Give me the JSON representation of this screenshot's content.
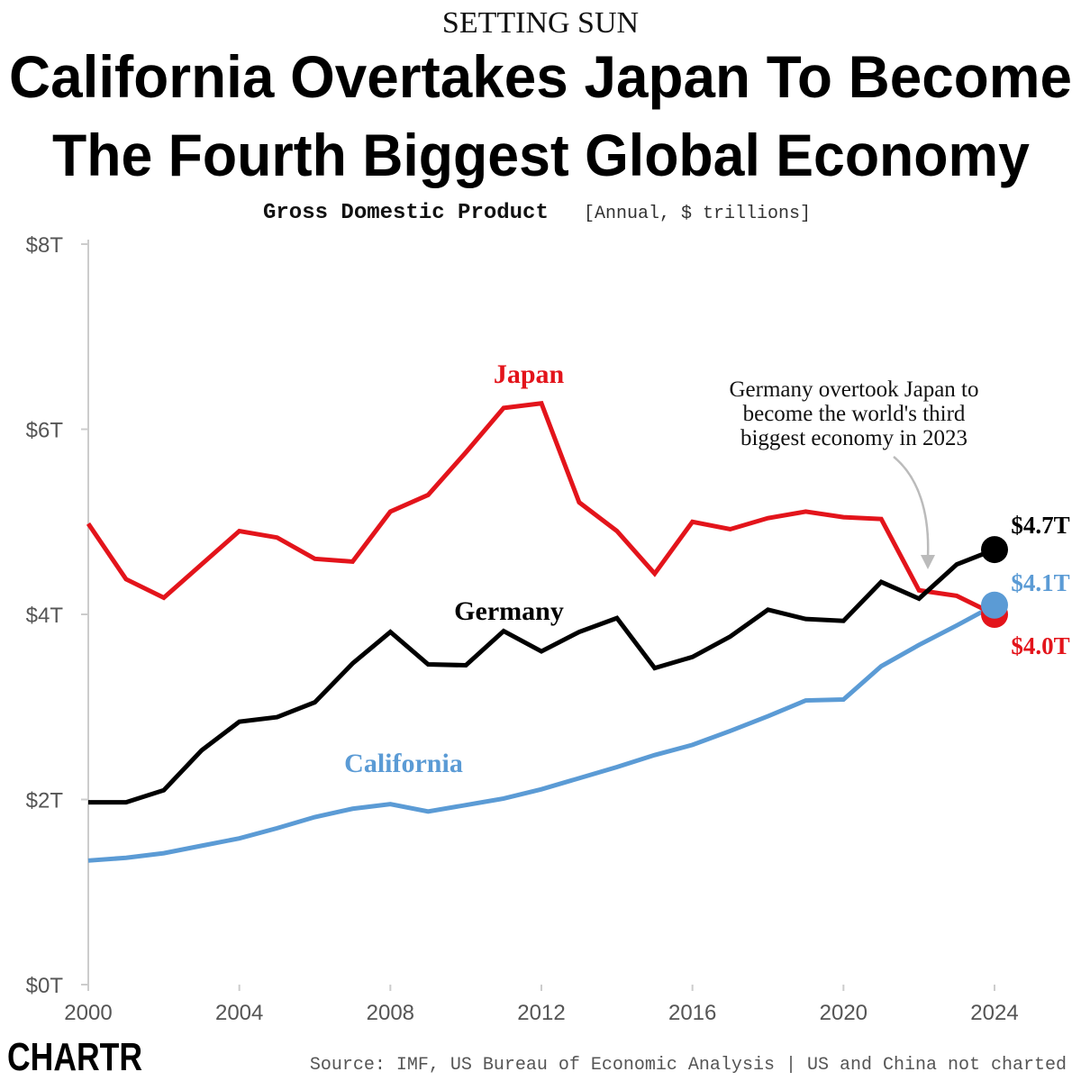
{
  "chart_data": {
    "type": "line",
    "kicker": "SETTING SUN",
    "title": [
      "California Overtakes Japan To Become",
      "The Fourth Biggest Global Economy"
    ],
    "subtitle": "Gross Domestic Product",
    "subtitle_note": "[Annual, $ trillions]",
    "annotation": [
      "Germany overtook Japan to",
      "become the world's third",
      "biggest economy in 2023"
    ],
    "source": "Source: IMF, US Bureau of Economic Analysis | US and China not charted",
    "logo": "CHARTR",
    "x": [
      2000,
      2001,
      2002,
      2003,
      2004,
      2005,
      2006,
      2007,
      2008,
      2009,
      2010,
      2011,
      2012,
      2013,
      2014,
      2015,
      2016,
      2017,
      2018,
      2019,
      2020,
      2021,
      2022,
      2023,
      2024
    ],
    "xlim": [
      2000,
      2024
    ],
    "xticks": [
      2000,
      2004,
      2008,
      2012,
      2016,
      2020,
      2024
    ],
    "ylim": [
      0,
      8
    ],
    "yticks": [
      {
        "value": 0,
        "label": "$0T"
      },
      {
        "value": 2,
        "label": "$2T"
      },
      {
        "value": 4,
        "label": "$4T"
      },
      {
        "value": 6,
        "label": "$6T"
      },
      {
        "value": 8,
        "label": "$8T"
      }
    ],
    "grid": false,
    "series": [
      {
        "name": "Japan",
        "color": "#e3141b",
        "values": [
          4.98,
          4.38,
          4.18,
          4.54,
          4.9,
          4.83,
          4.6,
          4.57,
          5.11,
          5.29,
          5.75,
          6.23,
          6.28,
          5.21,
          4.9,
          4.44,
          5.0,
          4.92,
          5.04,
          5.11,
          5.05,
          5.03,
          4.26,
          4.2,
          4.0
        ],
        "value_labels": [
          null,
          null,
          null,
          null,
          null,
          null,
          null,
          null,
          null,
          null,
          null,
          null,
          null,
          null,
          null,
          null,
          null,
          null,
          null,
          null,
          null,
          null,
          null,
          null,
          "$4.0T"
        ]
      },
      {
        "name": "Germany",
        "color": "#000000",
        "values": [
          1.97,
          1.97,
          2.1,
          2.53,
          2.84,
          2.89,
          3.05,
          3.47,
          3.81,
          3.46,
          3.45,
          3.82,
          3.6,
          3.81,
          3.96,
          3.42,
          3.54,
          3.76,
          4.05,
          3.95,
          3.93,
          4.35,
          4.17,
          4.54,
          4.7
        ],
        "value_labels": [
          null,
          null,
          null,
          null,
          null,
          null,
          null,
          null,
          null,
          null,
          null,
          null,
          null,
          null,
          null,
          null,
          null,
          null,
          null,
          null,
          null,
          null,
          null,
          null,
          "$4.7T"
        ]
      },
      {
        "name": "California",
        "color": "#5b9bd5",
        "values": [
          1.34,
          1.37,
          1.42,
          1.5,
          1.58,
          1.69,
          1.81,
          1.9,
          1.95,
          1.87,
          1.94,
          2.01,
          2.11,
          2.23,
          2.35,
          2.48,
          2.59,
          2.74,
          2.9,
          3.07,
          3.08,
          3.44,
          3.67,
          3.88,
          4.1
        ],
        "value_labels": [
          null,
          null,
          null,
          null,
          null,
          null,
          null,
          null,
          null,
          null,
          null,
          null,
          null,
          null,
          null,
          null,
          null,
          null,
          null,
          null,
          null,
          null,
          null,
          null,
          "$4.1T"
        ]
      }
    ]
  }
}
